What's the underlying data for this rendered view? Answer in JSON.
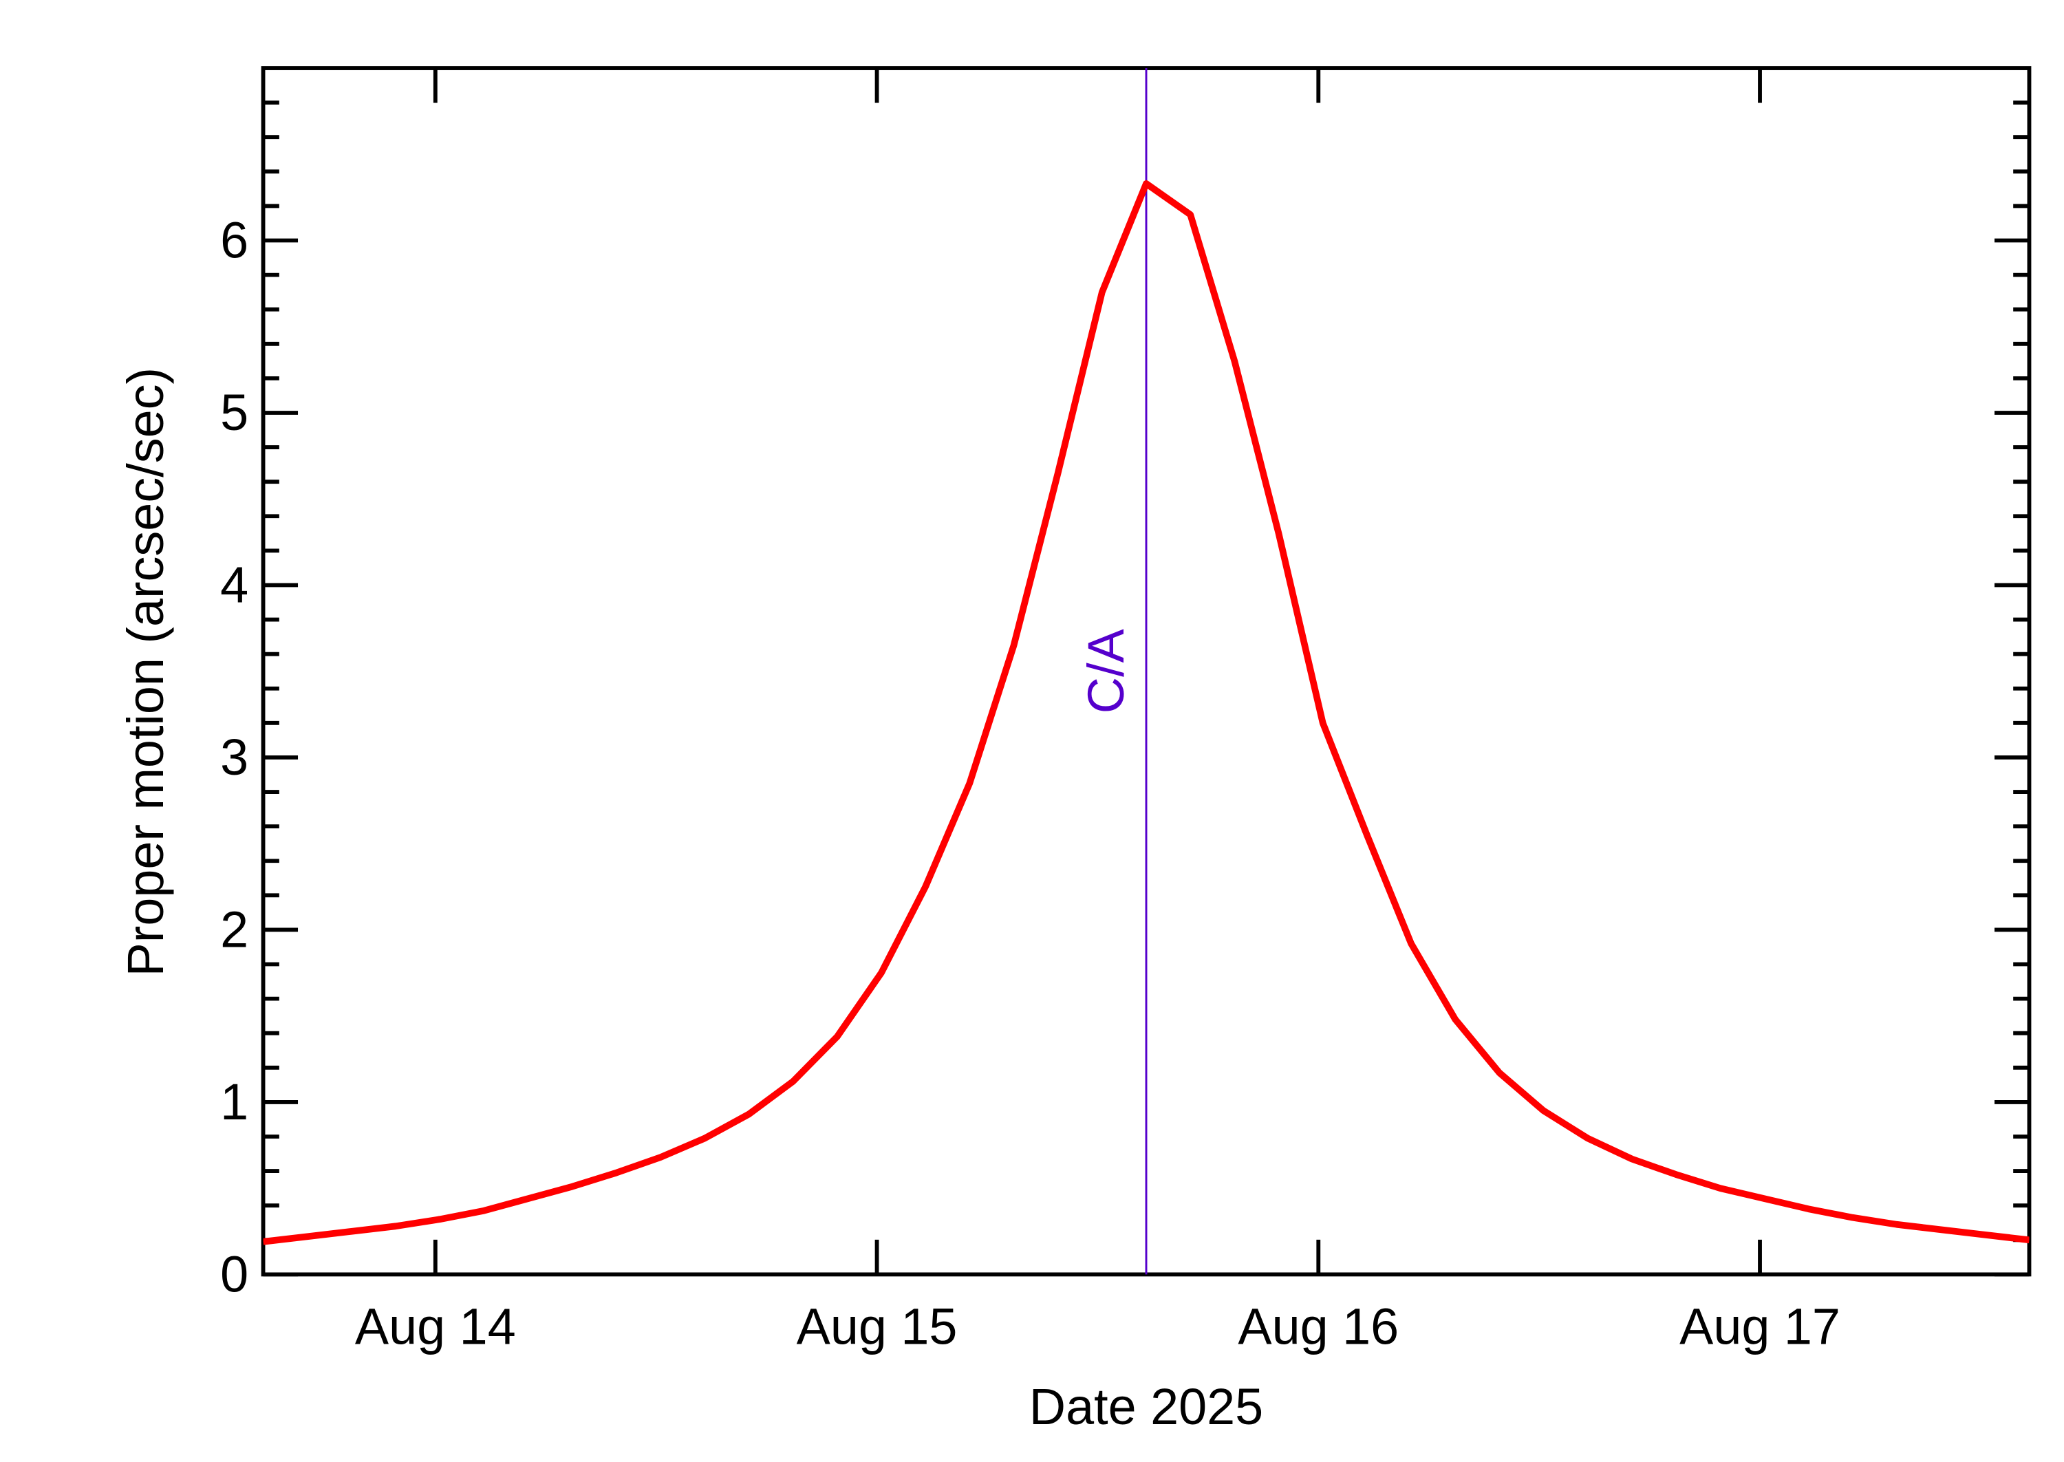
{
  "chart_data": {
    "type": "line",
    "x_label": "Date 2025",
    "y_label": "Proper motion (arcsec/sec)",
    "x": [
      13.61,
      13.71,
      13.81,
      13.91,
      14.01,
      14.11,
      14.21,
      14.31,
      14.41,
      14.51,
      14.61,
      14.71,
      14.81,
      14.91,
      15.01,
      15.11,
      15.21,
      15.31,
      15.41,
      15.51,
      15.61,
      15.71,
      15.81,
      15.91,
      16.01,
      16.11,
      16.21,
      16.31,
      16.41,
      16.51,
      16.61,
      16.71,
      16.81,
      16.91,
      17.01,
      17.11,
      17.21,
      17.31,
      17.41,
      17.51,
      17.61
    ],
    "series": [
      {
        "color": "#ff0000",
        "values": [
          0.19,
          0.22,
          0.25,
          0.28,
          0.32,
          0.37,
          0.44,
          0.51,
          0.59,
          0.68,
          0.79,
          0.93,
          1.12,
          1.38,
          1.75,
          2.25,
          2.85,
          3.65,
          4.65,
          5.7,
          6.33,
          6.15,
          5.3,
          4.3,
          3.2,
          2.55,
          1.92,
          1.48,
          1.17,
          0.95,
          0.79,
          0.67,
          0.58,
          0.5,
          0.44,
          0.38,
          0.33,
          0.29,
          0.26,
          0.23,
          0.2
        ]
      }
    ],
    "annotations": [
      {
        "x": 15.61,
        "text": "C/A",
        "color": "#5500cc"
      }
    ],
    "xlim": [
      13.61,
      17.61
    ],
    "xticks": [
      {
        "value": 14,
        "label": "Aug 14"
      },
      {
        "value": 15,
        "label": "Aug 15"
      },
      {
        "value": 16,
        "label": "Aug 16"
      },
      {
        "value": 17,
        "label": "Aug 17"
      }
    ],
    "ylim": [
      0,
      7
    ],
    "yticks": [
      0,
      1,
      2,
      3,
      4,
      5,
      6
    ],
    "yminorticks": [
      0.2,
      0.4,
      0.6,
      0.8,
      1.2,
      1.4,
      1.6,
      1.8,
      2.2,
      2.4,
      2.6,
      2.8,
      3.2,
      3.4,
      3.6,
      3.8,
      4.2,
      4.4,
      4.6,
      4.8,
      5.2,
      5.4,
      5.6,
      5.8,
      6.2,
      6.4,
      6.6,
      6.8
    ]
  }
}
